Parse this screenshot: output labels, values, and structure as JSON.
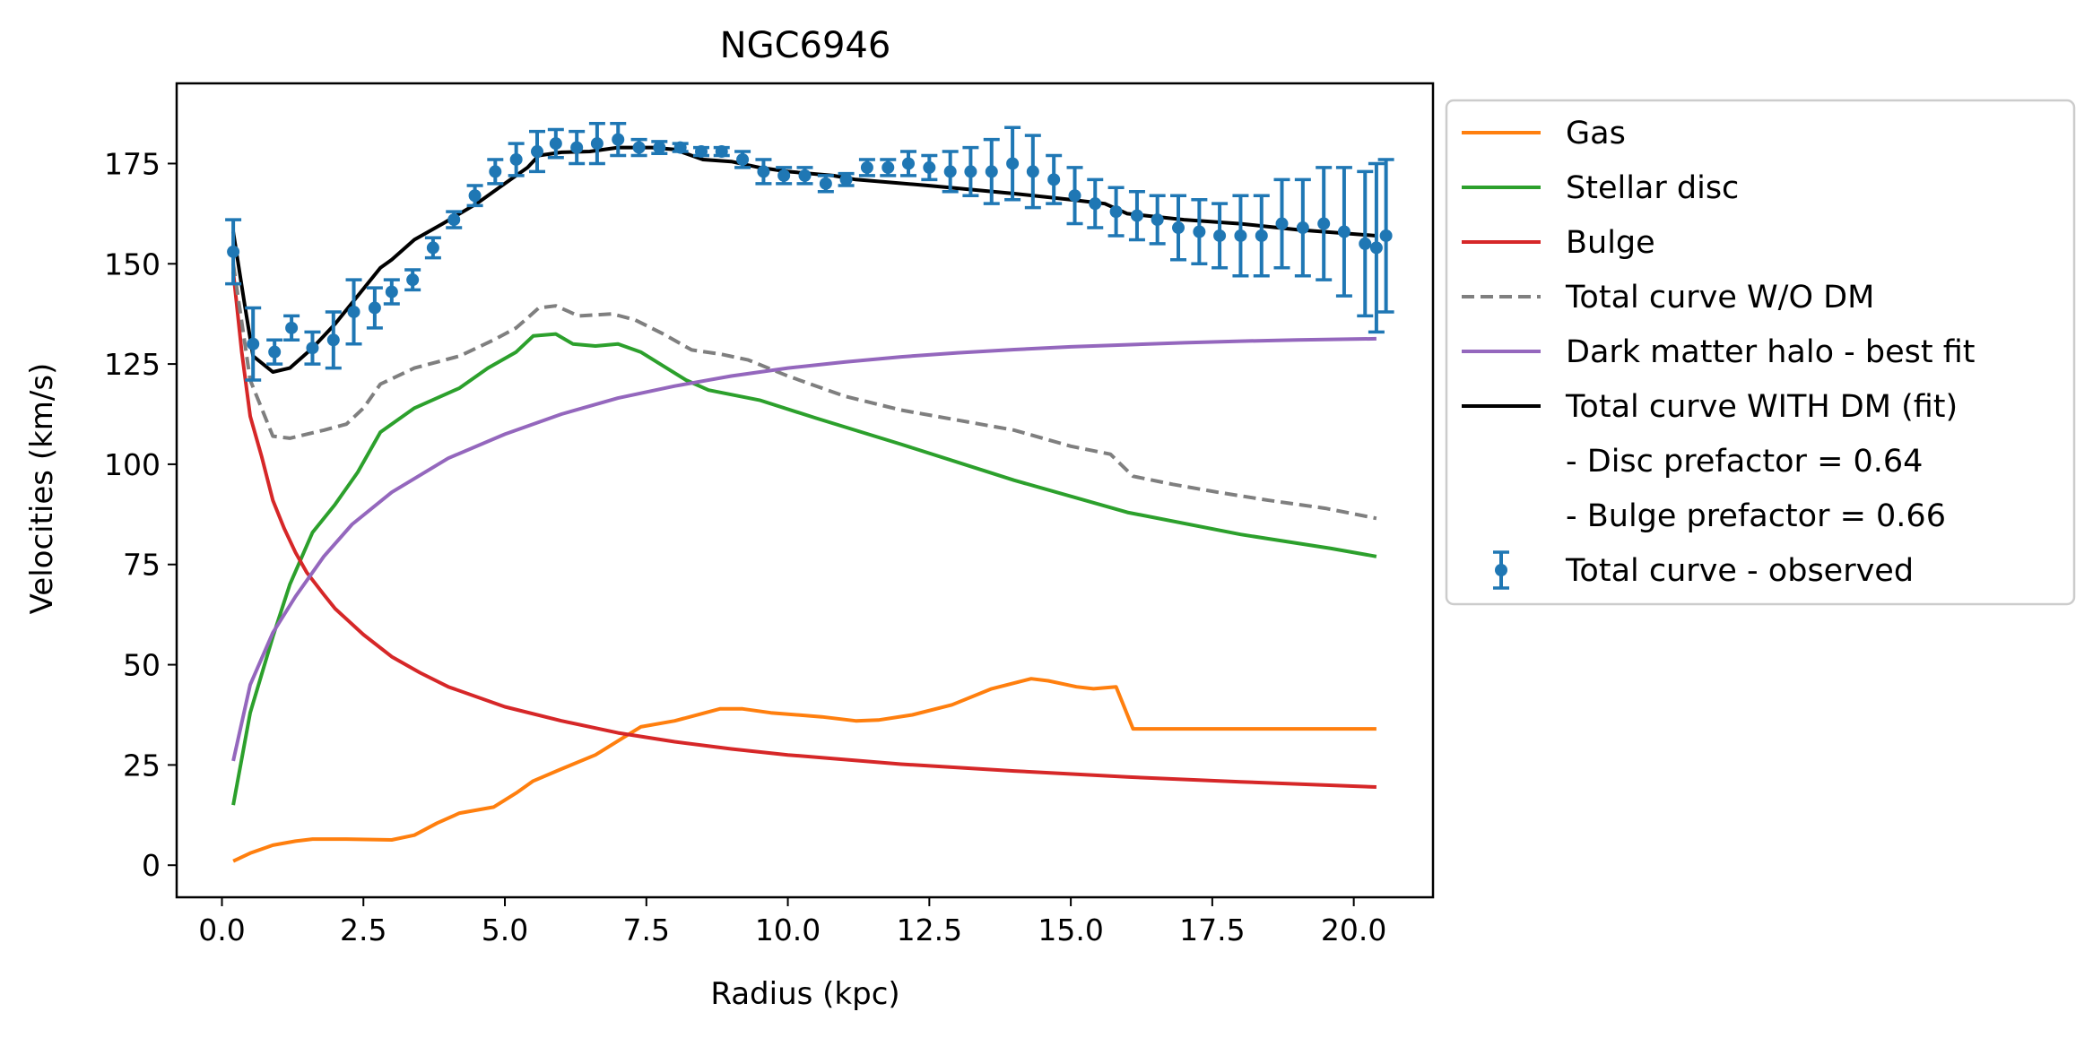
{
  "chart_data": {
    "type": "line",
    "title": "NGC6946",
    "xlabel": "Radius (kpc)",
    "ylabel": "Velocities (km/s)",
    "xlim": [
      -0.8,
      21.4
    ],
    "ylim": [
      -8,
      195
    ],
    "xticks": [
      0,
      2.5,
      5,
      7.5,
      10,
      12.5,
      15,
      17.5,
      20
    ],
    "xtick_labels": [
      "0.0",
      "2.5",
      "5.0",
      "7.5",
      "10.0",
      "12.5",
      "15.0",
      "17.5",
      "20.0"
    ],
    "yticks": [
      0,
      25,
      50,
      75,
      100,
      125,
      150,
      175
    ],
    "ytick_labels": [
      "0",
      "25",
      "50",
      "75",
      "100",
      "125",
      "150",
      "175"
    ],
    "grid": false,
    "legend_position": "outside-right-top",
    "legend": [
      {
        "label": "Gas",
        "kind": "line",
        "color": "#ff7f0e",
        "dash": "solid"
      },
      {
        "label": "Stellar disc",
        "kind": "line",
        "color": "#2ca02c",
        "dash": "solid"
      },
      {
        "label": "Bulge",
        "kind": "line",
        "color": "#d62728",
        "dash": "solid"
      },
      {
        "label": "Total curve W/O DM",
        "kind": "line",
        "color": "#7f7f7f",
        "dash": "dashed"
      },
      {
        "label": "Dark matter halo - best fit",
        "kind": "line",
        "color": "#9467bd",
        "dash": "solid"
      },
      {
        "label": "Total curve WITH DM (fit)",
        "kind": "line",
        "color": "#000000",
        "dash": "solid"
      },
      {
        "label": "- Disc prefactor = 0.64",
        "kind": "none"
      },
      {
        "label": "- Bulge prefactor = 0.66",
        "kind": "none"
      },
      {
        "label": "Total curve - observed",
        "kind": "errorbar",
        "color": "#1f77b4"
      }
    ],
    "series": [
      {
        "name": "Gas",
        "color": "#ff7f0e",
        "dash": "solid",
        "points": [
          [
            0.2,
            1
          ],
          [
            0.5,
            3
          ],
          [
            0.9,
            5
          ],
          [
            1.3,
            6
          ],
          [
            1.6,
            6.5
          ],
          [
            2.2,
            6.5
          ],
          [
            3.0,
            6.3
          ],
          [
            3.4,
            7.5
          ],
          [
            3.8,
            10.5
          ],
          [
            4.2,
            13
          ],
          [
            4.8,
            14.5
          ],
          [
            5.2,
            18
          ],
          [
            5.5,
            21
          ],
          [
            6.0,
            24
          ],
          [
            6.6,
            27.5
          ],
          [
            7.0,
            31
          ],
          [
            7.4,
            34.5
          ],
          [
            8.0,
            36
          ],
          [
            8.8,
            39
          ],
          [
            9.2,
            39
          ],
          [
            9.7,
            38
          ],
          [
            10.6,
            37
          ],
          [
            11.2,
            36
          ],
          [
            11.6,
            36.2
          ],
          [
            12.2,
            37.5
          ],
          [
            12.9,
            40
          ],
          [
            13.6,
            44
          ],
          [
            14.3,
            46.5
          ],
          [
            14.6,
            46
          ],
          [
            15.1,
            44.5
          ],
          [
            15.4,
            44
          ],
          [
            15.8,
            44.5
          ],
          [
            16.1,
            34
          ],
          [
            20.4,
            34
          ]
        ]
      },
      {
        "name": "Stellar disc",
        "color": "#2ca02c",
        "dash": "solid",
        "points": [
          [
            0.2,
            15
          ],
          [
            0.5,
            38
          ],
          [
            0.9,
            57
          ],
          [
            1.2,
            70
          ],
          [
            1.6,
            83
          ],
          [
            2.0,
            90
          ],
          [
            2.4,
            98
          ],
          [
            2.8,
            108
          ],
          [
            3.4,
            114
          ],
          [
            4.2,
            119
          ],
          [
            4.7,
            124
          ],
          [
            5.2,
            128
          ],
          [
            5.5,
            132
          ],
          [
            5.9,
            132.5
          ],
          [
            6.2,
            130
          ],
          [
            6.6,
            129.5
          ],
          [
            7.0,
            130
          ],
          [
            7.4,
            128
          ],
          [
            7.8,
            124.5
          ],
          [
            8.2,
            121
          ],
          [
            8.6,
            118.5
          ],
          [
            9.5,
            116
          ],
          [
            10.5,
            111.5
          ],
          [
            12.0,
            105
          ],
          [
            14.0,
            96
          ],
          [
            16.0,
            88
          ],
          [
            18.0,
            82.5
          ],
          [
            19.6,
            79
          ],
          [
            20.4,
            77
          ]
        ]
      },
      {
        "name": "Bulge",
        "color": "#d62728",
        "dash": "solid",
        "points": [
          [
            0.2,
            148
          ],
          [
            0.35,
            128
          ],
          [
            0.5,
            112
          ],
          [
            0.7,
            102
          ],
          [
            0.9,
            91
          ],
          [
            1.1,
            84
          ],
          [
            1.3,
            78
          ],
          [
            1.5,
            73
          ],
          [
            1.8,
            67.5
          ],
          [
            2.0,
            64
          ],
          [
            2.5,
            57.5
          ],
          [
            3.0,
            52
          ],
          [
            3.5,
            48
          ],
          [
            4.0,
            44.5
          ],
          [
            5.0,
            39.5
          ],
          [
            6.0,
            36
          ],
          [
            7.0,
            33
          ],
          [
            8.0,
            30.8
          ],
          [
            9.0,
            29
          ],
          [
            10.0,
            27.5
          ],
          [
            12.0,
            25.2
          ],
          [
            14.0,
            23.5
          ],
          [
            16.0,
            22
          ],
          [
            18.0,
            20.8
          ],
          [
            20.4,
            19.5
          ]
        ]
      },
      {
        "name": "Total curve W/O DM",
        "color": "#7f7f7f",
        "dash": "dashed",
        "points": [
          [
            0.2,
            150
          ],
          [
            0.5,
            121
          ],
          [
            0.9,
            107
          ],
          [
            1.2,
            106.5
          ],
          [
            1.8,
            108.5
          ],
          [
            2.2,
            110
          ],
          [
            2.5,
            114
          ],
          [
            2.8,
            120
          ],
          [
            3.4,
            124
          ],
          [
            4.2,
            127
          ],
          [
            4.8,
            131
          ],
          [
            5.2,
            134
          ],
          [
            5.6,
            139
          ],
          [
            5.9,
            139.5
          ],
          [
            6.3,
            137
          ],
          [
            6.9,
            137.5
          ],
          [
            7.3,
            136
          ],
          [
            7.8,
            132.5
          ],
          [
            8.3,
            128.5
          ],
          [
            8.8,
            127.5
          ],
          [
            9.3,
            126
          ],
          [
            10.0,
            122
          ],
          [
            11.0,
            117
          ],
          [
            12.0,
            113.5
          ],
          [
            13.0,
            111
          ],
          [
            14.0,
            108.5
          ],
          [
            15.0,
            104.5
          ],
          [
            15.7,
            102.5
          ],
          [
            16.1,
            97
          ],
          [
            16.8,
            95
          ],
          [
            17.6,
            93
          ],
          [
            18.5,
            91
          ],
          [
            19.5,
            89
          ],
          [
            20.4,
            86.5
          ]
        ]
      },
      {
        "name": "Dark matter halo - best fit",
        "color": "#9467bd",
        "dash": "solid",
        "points": [
          [
            0.2,
            26
          ],
          [
            0.5,
            45
          ],
          [
            0.9,
            58
          ],
          [
            1.3,
            67
          ],
          [
            1.8,
            77
          ],
          [
            2.3,
            85
          ],
          [
            3.0,
            93
          ],
          [
            4.0,
            101.5
          ],
          [
            5.0,
            107.5
          ],
          [
            6.0,
            112.5
          ],
          [
            7.0,
            116.5
          ],
          [
            8.0,
            119.5
          ],
          [
            9.0,
            122
          ],
          [
            10.0,
            124
          ],
          [
            11.0,
            125.5
          ],
          [
            12.0,
            126.8
          ],
          [
            13.0,
            127.8
          ],
          [
            14.0,
            128.6
          ],
          [
            15.0,
            129.3
          ],
          [
            16.0,
            129.8
          ],
          [
            17.0,
            130.3
          ],
          [
            18.0,
            130.7
          ],
          [
            19.0,
            131
          ],
          [
            20.4,
            131.3
          ]
        ]
      },
      {
        "name": "Total curve WITH DM (fit)",
        "color": "#000000",
        "dash": "solid",
        "points": [
          [
            0.2,
            158
          ],
          [
            0.4,
            140
          ],
          [
            0.55,
            127
          ],
          [
            0.9,
            123
          ],
          [
            1.2,
            124
          ],
          [
            1.6,
            129
          ],
          [
            2.0,
            135
          ],
          [
            2.4,
            142
          ],
          [
            2.8,
            149
          ],
          [
            3.0,
            151
          ],
          [
            3.4,
            156
          ],
          [
            3.9,
            160
          ],
          [
            4.5,
            165
          ],
          [
            5.0,
            170
          ],
          [
            5.4,
            174
          ],
          [
            5.6,
            177
          ],
          [
            6.0,
            177.8
          ],
          [
            6.5,
            178
          ],
          [
            7.0,
            179
          ],
          [
            7.6,
            179
          ],
          [
            8.0,
            178.5
          ],
          [
            8.5,
            176
          ],
          [
            9.0,
            175.5
          ],
          [
            9.5,
            174
          ],
          [
            10.0,
            173
          ],
          [
            10.8,
            172
          ],
          [
            11.2,
            171
          ],
          [
            12.5,
            169.5
          ],
          [
            14.0,
            167.5
          ],
          [
            15.0,
            166
          ],
          [
            15.6,
            165
          ],
          [
            16.0,
            162.5
          ],
          [
            17.0,
            161
          ],
          [
            18.0,
            160
          ],
          [
            19.0,
            158.5
          ],
          [
            20.4,
            157
          ]
        ]
      },
      {
        "name": "Total curve - observed",
        "type": "errorbar",
        "color": "#1f77b4",
        "points": [
          {
            "x": 0.2,
            "y": 153,
            "err": 8
          },
          {
            "x": 0.55,
            "y": 130,
            "err": 9
          },
          {
            "x": 0.93,
            "y": 128,
            "err": 3
          },
          {
            "x": 1.23,
            "y": 134,
            "err": 3
          },
          {
            "x": 1.6,
            "y": 129,
            "err": 4
          },
          {
            "x": 1.97,
            "y": 131,
            "err": 7
          },
          {
            "x": 2.33,
            "y": 138,
            "err": 8
          },
          {
            "x": 2.7,
            "y": 139,
            "err": 5
          },
          {
            "x": 3.0,
            "y": 143,
            "err": 3
          },
          {
            "x": 3.37,
            "y": 146,
            "err": 2.5
          },
          {
            "x": 3.73,
            "y": 154,
            "err": 2.5
          },
          {
            "x": 4.1,
            "y": 161,
            "err": 2
          },
          {
            "x": 4.47,
            "y": 167,
            "err": 2.5
          },
          {
            "x": 4.83,
            "y": 173,
            "err": 3
          },
          {
            "x": 5.2,
            "y": 176,
            "err": 4
          },
          {
            "x": 5.57,
            "y": 178,
            "err": 5
          },
          {
            "x": 5.9,
            "y": 180,
            "err": 3.5
          },
          {
            "x": 6.27,
            "y": 179,
            "err": 4
          },
          {
            "x": 6.63,
            "y": 180,
            "err": 5
          },
          {
            "x": 7.0,
            "y": 181,
            "err": 4
          },
          {
            "x": 7.37,
            "y": 179,
            "err": 2
          },
          {
            "x": 7.73,
            "y": 179,
            "err": 1.5
          },
          {
            "x": 8.1,
            "y": 179,
            "err": 1
          },
          {
            "x": 8.47,
            "y": 178,
            "err": 1
          },
          {
            "x": 8.83,
            "y": 178,
            "err": 1
          },
          {
            "x": 9.2,
            "y": 176,
            "err": 2
          },
          {
            "x": 9.57,
            "y": 173,
            "err": 3
          },
          {
            "x": 9.93,
            "y": 172,
            "err": 2
          },
          {
            "x": 10.3,
            "y": 172,
            "err": 2
          },
          {
            "x": 10.67,
            "y": 170,
            "err": 2
          },
          {
            "x": 11.03,
            "y": 171,
            "err": 1.5
          },
          {
            "x": 11.4,
            "y": 174,
            "err": 2
          },
          {
            "x": 11.77,
            "y": 174,
            "err": 2
          },
          {
            "x": 12.13,
            "y": 175,
            "err": 3
          },
          {
            "x": 12.5,
            "y": 174,
            "err": 3
          },
          {
            "x": 12.87,
            "y": 173,
            "err": 5
          },
          {
            "x": 13.23,
            "y": 173,
            "err": 6
          },
          {
            "x": 13.6,
            "y": 173,
            "err": 8
          },
          {
            "x": 13.97,
            "y": 175,
            "err": 9
          },
          {
            "x": 14.33,
            "y": 173,
            "err": 9
          },
          {
            "x": 14.7,
            "y": 171,
            "err": 6
          },
          {
            "x": 15.07,
            "y": 167,
            "err": 7
          },
          {
            "x": 15.43,
            "y": 165,
            "err": 6
          },
          {
            "x": 15.8,
            "y": 163,
            "err": 6
          },
          {
            "x": 16.17,
            "y": 162,
            "err": 6
          },
          {
            "x": 16.53,
            "y": 161,
            "err": 6
          },
          {
            "x": 16.9,
            "y": 159,
            "err": 8
          },
          {
            "x": 17.27,
            "y": 158,
            "err": 8
          },
          {
            "x": 17.63,
            "y": 157,
            "err": 8
          },
          {
            "x": 18.0,
            "y": 157,
            "err": 10
          },
          {
            "x": 18.37,
            "y": 157,
            "err": 10
          },
          {
            "x": 18.73,
            "y": 160,
            "err": 11
          },
          {
            "x": 19.1,
            "y": 159,
            "err": 12
          },
          {
            "x": 19.47,
            "y": 160,
            "err": 14
          },
          {
            "x": 19.83,
            "y": 158,
            "err": 16
          },
          {
            "x": 20.2,
            "y": 155,
            "err": 18
          },
          {
            "x": 20.57,
            "y": 157,
            "err": 19
          },
          {
            "x": 20.4,
            "y": 154,
            "err": 21
          }
        ]
      }
    ]
  }
}
